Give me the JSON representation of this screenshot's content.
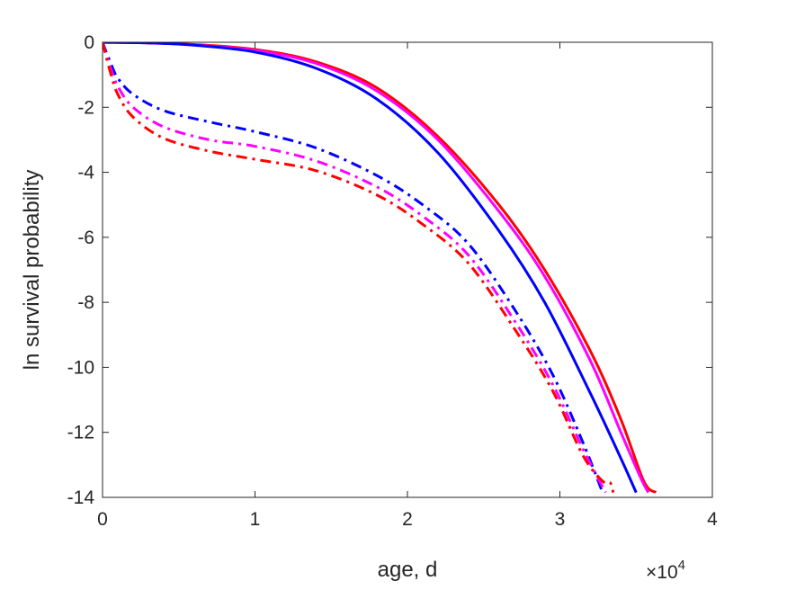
{
  "chart_data": {
    "type": "line",
    "title": "",
    "xlabel": "age, d",
    "ylabel": "ln survival probability",
    "x_exponent_label": "×10",
    "x_exponent_power": "4",
    "xlim": [
      0,
      40000
    ],
    "ylim": [
      -14,
      0
    ],
    "x_ticks": [
      0,
      10000,
      20000,
      30000,
      40000
    ],
    "x_tick_labels": [
      "0",
      "1",
      "2",
      "3",
      "4"
    ],
    "y_ticks": [
      0,
      -2,
      -4,
      -6,
      -8,
      -10,
      -12,
      -14
    ],
    "y_tick_labels": [
      "0",
      "-2",
      "-4",
      "-6",
      "-8",
      "-10",
      "-12",
      "-14"
    ],
    "grid": false,
    "box": true,
    "series": [
      {
        "color": "#ff0000",
        "style": "solid",
        "x": [
          0,
          3000,
          6000,
          10000,
          14000,
          18000,
          22000,
          26000,
          29000,
          32000,
          34000,
          35500,
          36300
        ],
        "y": [
          0,
          -0.02,
          -0.07,
          -0.22,
          -0.6,
          -1.4,
          -2.9,
          -5.0,
          -7.0,
          -9.5,
          -11.6,
          -13.5,
          -13.85
        ]
      },
      {
        "color": "#ff00ff",
        "style": "solid",
        "x": [
          0,
          3000,
          6000,
          10000,
          14000,
          18000,
          22000,
          26000,
          29000,
          32000,
          34000,
          35300,
          35800
        ],
        "y": [
          0,
          -0.02,
          -0.08,
          -0.25,
          -0.65,
          -1.5,
          -3.0,
          -5.2,
          -7.2,
          -9.8,
          -12.0,
          -13.4,
          -13.85
        ]
      },
      {
        "color": "#0000ff",
        "style": "solid",
        "x": [
          0,
          3000,
          6000,
          10000,
          14000,
          18000,
          22000,
          26000,
          29000,
          32000,
          34000,
          35000
        ],
        "y": [
          0,
          -0.02,
          -0.09,
          -0.3,
          -0.8,
          -1.75,
          -3.4,
          -5.8,
          -8.0,
          -10.8,
          -12.8,
          -13.85
        ]
      },
      {
        "color": "#0000ff",
        "style": "dashdot",
        "x": [
          0,
          500,
          1000,
          2000,
          4000,
          7000,
          10000,
          14000,
          18000,
          21000,
          24000,
          27000,
          29500,
          31500,
          32800
        ],
        "y": [
          0,
          -0.6,
          -1.1,
          -1.6,
          -2.1,
          -2.45,
          -2.75,
          -3.25,
          -4.1,
          -5.0,
          -6.2,
          -8.2,
          -10.2,
          -12.3,
          -13.85
        ]
      },
      {
        "color": "#ff00ff",
        "style": "dashdot",
        "x": [
          0,
          500,
          1000,
          2000,
          4000,
          7000,
          10000,
          14000,
          18000,
          21000,
          24000,
          27000,
          29500,
          31500,
          33000
        ],
        "y": [
          0,
          -0.75,
          -1.35,
          -2.0,
          -2.6,
          -3.0,
          -3.2,
          -3.65,
          -4.45,
          -5.35,
          -6.55,
          -8.55,
          -10.5,
          -12.5,
          -13.85
        ]
      },
      {
        "color": "#ff0000",
        "style": "dashdot",
        "x": [
          0,
          500,
          1000,
          2000,
          4000,
          7000,
          10000,
          14000,
          18000,
          21000,
          24000,
          27000,
          29500,
          31500,
          32800,
          33300,
          33500
        ],
        "y": [
          0,
          -0.9,
          -1.6,
          -2.3,
          -2.95,
          -3.35,
          -3.6,
          -3.95,
          -4.7,
          -5.6,
          -6.8,
          -8.8,
          -10.7,
          -12.7,
          -13.5,
          -13.55,
          -13.85
        ]
      }
    ]
  }
}
